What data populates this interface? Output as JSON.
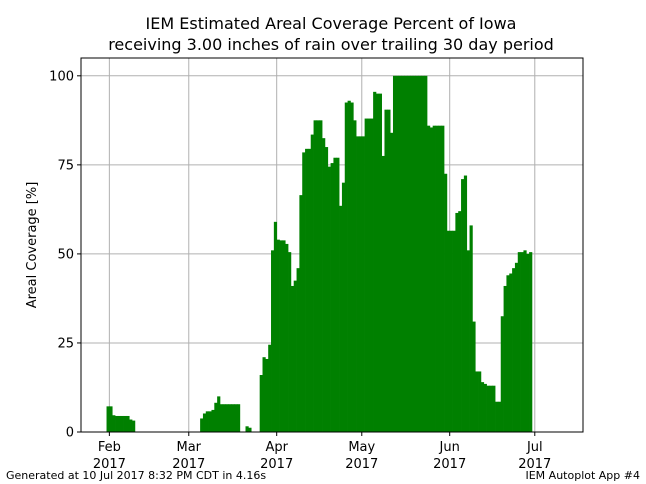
{
  "footer": {
    "generated": "Generated at 10 Jul 2017 8:32 PM CDT in 4.16s",
    "app": "IEM Autoplot App #4"
  },
  "colors": {
    "bar": "#008000",
    "grid": "#b0b0b0",
    "axis": "#000000"
  },
  "chart_data": {
    "type": "bar",
    "title": "IEM Estimated Areal Coverage Percent of Iowa",
    "subtitle": "receiving 3.00 inches of rain over trailing 30 day period",
    "ylabel": "Areal Coverage [%]",
    "xlabel": "",
    "ylim": [
      0,
      105
    ],
    "yticks": [
      0,
      25,
      50,
      75,
      100
    ],
    "xlim": [
      "2017-01-22",
      "2017-07-18"
    ],
    "xticks": [
      {
        "date": "2017-02-01",
        "label": [
          "Feb",
          "2017"
        ]
      },
      {
        "date": "2017-03-01",
        "label": [
          "Mar",
          "2017"
        ]
      },
      {
        "date": "2017-04-01",
        "label": [
          "Apr",
          "2017"
        ]
      },
      {
        "date": "2017-05-01",
        "label": [
          "May",
          "2017"
        ]
      },
      {
        "date": "2017-06-01",
        "label": [
          "Jun",
          "2017"
        ]
      },
      {
        "date": "2017-07-01",
        "label": [
          "Jul",
          "2017"
        ]
      }
    ],
    "grid": true,
    "start_date": "2017-01-31",
    "values": [
      7.2,
      7.2,
      4.7,
      4.5,
      4.5,
      4.5,
      4.5,
      4.5,
      3.5,
      3.2,
      0,
      0,
      0,
      0,
      0,
      0,
      0,
      0,
      0,
      0,
      0,
      0,
      0,
      0,
      0,
      0,
      0,
      0,
      0,
      0,
      0,
      0,
      0,
      3.8,
      5.2,
      5.8,
      5.8,
      6.2,
      8.2,
      10.0,
      7.8,
      7.8,
      7.8,
      7.8,
      7.8,
      7.8,
      7.8,
      0,
      0,
      1.6,
      1.2,
      0,
      0,
      0,
      16.0,
      21.0,
      20.5,
      24.5,
      51.0,
      59.0,
      54.0,
      53.8,
      53.8,
      52.8,
      50.5,
      41.0,
      42.5,
      46.0,
      66.5,
      78.5,
      79.5,
      79.5,
      83.5,
      87.5,
      87.5,
      87.5,
      82.5,
      80.0,
      74.5,
      75.5,
      77.0,
      77.0,
      63.5,
      70.0,
      92.5,
      93.0,
      92.5,
      87.5,
      83.0,
      83.0,
      83.0,
      88.0,
      88.0,
      88.0,
      95.5,
      95.0,
      95.0,
      77.5,
      90.5,
      90.5,
      84.0,
      100.0,
      100.0,
      100.0,
      100.0,
      100.0,
      100.0,
      100.0,
      100.0,
      100.0,
      100.0,
      100.0,
      100.0,
      86.0,
      85.5,
      86.0,
      86.0,
      86.0,
      86.0,
      72.5,
      56.5,
      56.5,
      56.5,
      61.5,
      62.0,
      71.0,
      72.0,
      51.0,
      58.0,
      31.0,
      17.0,
      17.0,
      14.0,
      13.5,
      13.0,
      13.0,
      13.0,
      8.5,
      8.5,
      32.5,
      41.0,
      44.0,
      44.5,
      46.0,
      47.5,
      50.5,
      50.5,
      51.0,
      50.0,
      50.5
    ]
  }
}
